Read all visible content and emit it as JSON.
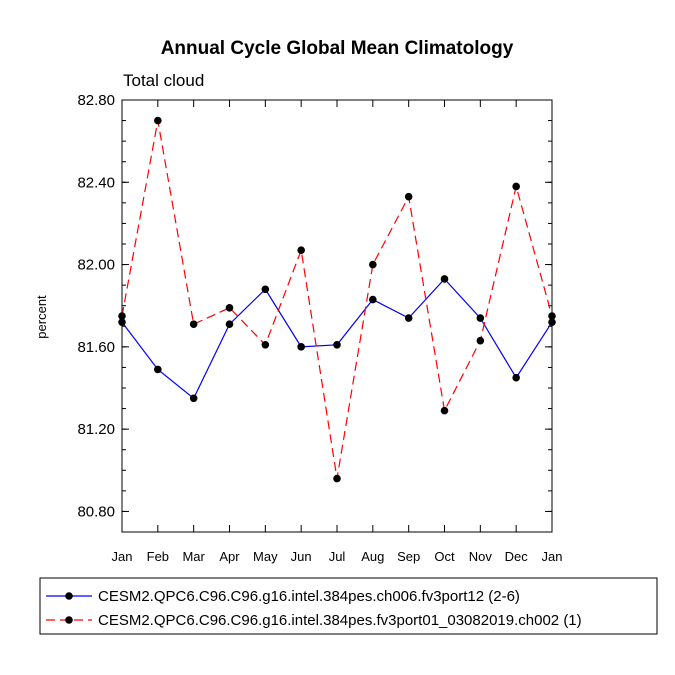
{
  "chart_data": {
    "type": "line",
    "title": "Annual Cycle Global Mean Climatology",
    "subtitle": "Total cloud",
    "xlabel": "",
    "ylabel": "percent",
    "categories": [
      "Jan",
      "Feb",
      "Mar",
      "Apr",
      "May",
      "Jun",
      "Jul",
      "Aug",
      "Sep",
      "Oct",
      "Nov",
      "Dec",
      "Jan"
    ],
    "ylim": [
      80.7,
      82.8
    ],
    "yticks": [
      "80.80",
      "81.20",
      "81.60",
      "82.00",
      "82.40",
      "82.80"
    ],
    "series": [
      {
        "name": "CESM2.QPC6.C96.C96.g16.intel.384pes.ch006.fv3port12 (2-6)",
        "color": "#0000ff",
        "dash": "solid",
        "values": [
          81.72,
          81.49,
          81.35,
          81.71,
          81.88,
          81.6,
          81.61,
          81.83,
          81.74,
          81.93,
          81.74,
          81.45,
          81.72
        ]
      },
      {
        "name": "CESM2.QPC6.C96.C96.g16.intel.384pes.fv3port01_03082019.ch002 (1)",
        "color": "#ff0000",
        "dash": "dashed",
        "values": [
          81.75,
          82.7,
          81.71,
          81.79,
          81.61,
          82.07,
          80.96,
          82.0,
          82.33,
          81.29,
          81.63,
          82.38,
          81.75
        ]
      }
    ]
  }
}
